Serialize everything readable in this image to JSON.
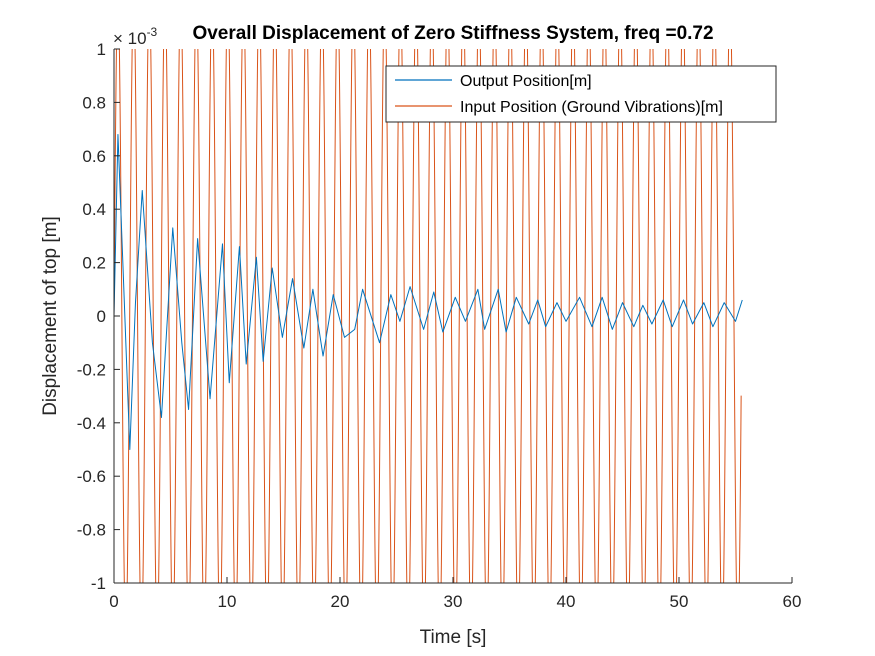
{
  "chart_data": {
    "type": "line",
    "title": "Overall Displacement of Zero Stiffness System, freq =0.72",
    "xlabel": "Time [s]",
    "ylabel": "Displacement of top [m]",
    "y_exponent_label": "× 10",
    "y_exponent_power": "-3",
    "xlim": [
      0,
      60
    ],
    "ylim": [
      -1,
      1
    ],
    "x_ticks": [
      0,
      10,
      20,
      30,
      40,
      50,
      60
    ],
    "x_tick_labels": [
      "0",
      "10",
      "20",
      "30",
      "40",
      "50",
      "60"
    ],
    "y_ticks": [
      -1,
      -0.8,
      -0.6,
      -0.4,
      -0.2,
      0,
      0.2,
      0.4,
      0.6,
      0.8,
      1
    ],
    "y_tick_labels": [
      "-1",
      "-0.8",
      "-0.6",
      "-0.4",
      "-0.2",
      "0",
      "0.2",
      "0.4",
      "0.6",
      "0.8",
      "1"
    ],
    "grid": false,
    "legend_position": "top-right",
    "series": [
      {
        "name": "Output Position[m]",
        "color": "#0072BD",
        "x": [
          0,
          0.35,
          0.8,
          1.4,
          1.9,
          2.5,
          3.4,
          4.2,
          5.2,
          6.0,
          6.6,
          7.4,
          8.5,
          9.6,
          10.2,
          11.1,
          11.7,
          12.6,
          13.2,
          14.0,
          14.9,
          15.8,
          16.8,
          17.6,
          18.5,
          19.4,
          20.4,
          21.3,
          22.0,
          23.5,
          24.5,
          25.3,
          26.2,
          27.4,
          28.3,
          29.1,
          30.2,
          31.1,
          32.2,
          32.8,
          34.0,
          34.7,
          35.6,
          36.7,
          37.5,
          38.2,
          39.2,
          40.0,
          41.2,
          42.3,
          43.2,
          44.1,
          45.0,
          46.0,
          46.8,
          47.6,
          48.6,
          49.4,
          50.4,
          51.2,
          52.2,
          53.0,
          54.0,
          55.0,
          55.6
        ],
        "y": [
          0,
          0.68,
          0.18,
          -0.5,
          0.05,
          0.47,
          -0.1,
          -0.38,
          0.33,
          -0.1,
          -0.35,
          0.29,
          -0.31,
          0.27,
          -0.25,
          0.26,
          -0.18,
          0.22,
          -0.17,
          0.18,
          -0.08,
          0.14,
          -0.12,
          0.1,
          -0.15,
          0.08,
          -0.08,
          -0.05,
          0.1,
          -0.1,
          0.08,
          -0.02,
          0.11,
          -0.05,
          0.09,
          -0.06,
          0.07,
          -0.02,
          0.1,
          -0.05,
          0.1,
          -0.06,
          0.07,
          -0.03,
          0.06,
          -0.04,
          0.05,
          -0.02,
          0.07,
          -0.04,
          0.07,
          -0.05,
          0.05,
          -0.04,
          0.04,
          -0.03,
          0.06,
          -0.04,
          0.06,
          -0.03,
          0.05,
          -0.04,
          0.05,
          -0.02,
          0.06
        ]
      },
      {
        "name": "Input Position (Ground Vibrations)[m]",
        "color": "#D95319",
        "signal": "sine",
        "frequency_hz": 0.72,
        "amplitude": 1.2,
        "x_range": [
          0,
          55.5
        ]
      }
    ]
  }
}
